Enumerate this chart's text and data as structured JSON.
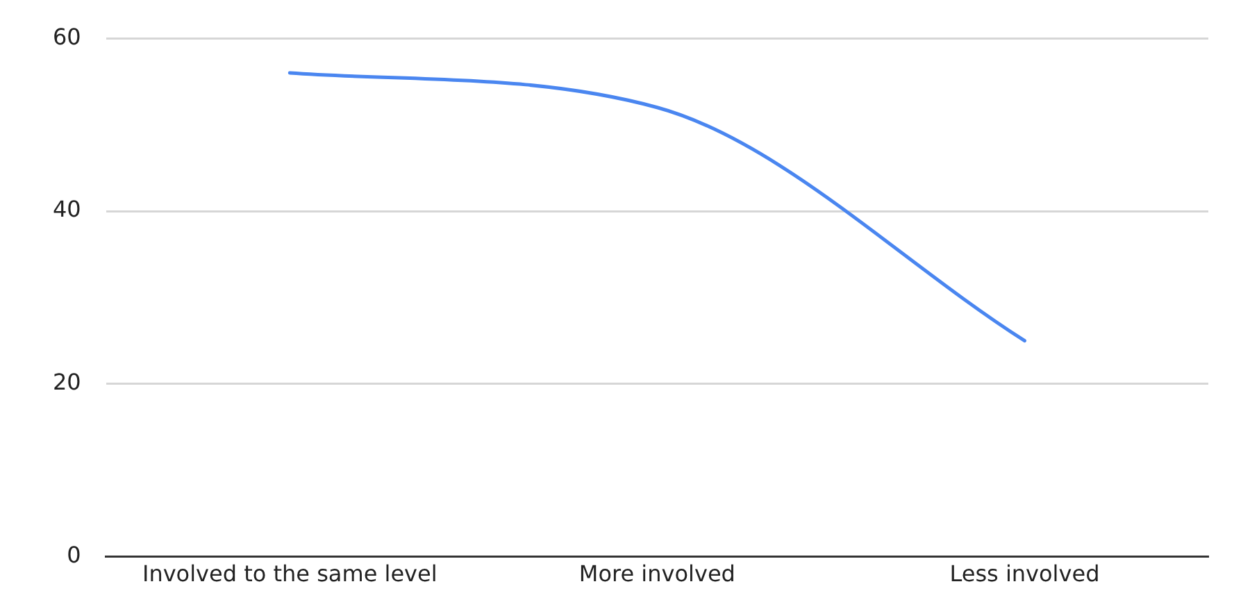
{
  "chart_data": {
    "type": "line",
    "categories": [
      "Involved to the same level",
      "More involved",
      "Less involved"
    ],
    "series": [
      {
        "color": "#4a86f0",
        "values": [
          56,
          52,
          25
        ]
      }
    ],
    "ylim": [
      0,
      60
    ],
    "yticks": [
      0,
      20,
      40,
      60
    ],
    "grid": "y",
    "legend": false,
    "marker": "none"
  }
}
